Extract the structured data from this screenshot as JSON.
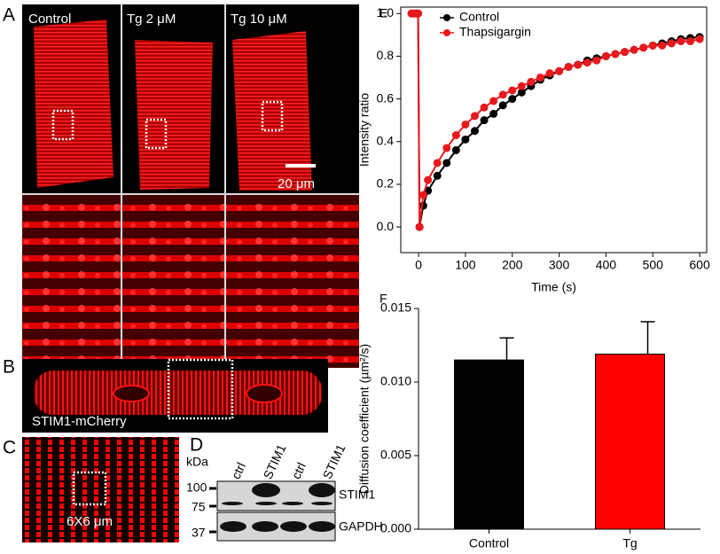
{
  "figure": {
    "panel_a": {
      "label": "A",
      "images": [
        "Control",
        "Tg 2 μM",
        "Tg 10 μM"
      ],
      "scale_bar": "20 μm"
    },
    "panel_b": {
      "label": "B",
      "caption": "STIM1-mCherry"
    },
    "panel_c": {
      "label": "C",
      "caption": "6X6 μm"
    },
    "panel_d": {
      "label": "D",
      "unit": "kDa",
      "markers": [
        "100",
        "75",
        "37"
      ],
      "lanes": [
        "ctrl",
        "STIM1",
        "ctrl",
        "STIM1"
      ],
      "bands": [
        "STIM1",
        "GAPDH"
      ]
    }
  },
  "chart_data": [
    {
      "type": "line",
      "label": "E",
      "x_label": "Time (s)",
      "y_label": "Intensity ratio",
      "x": [
        -15,
        -10,
        -5,
        -1,
        2,
        10,
        20,
        40,
        60,
        80,
        100,
        120,
        140,
        160,
        180,
        200,
        220,
        240,
        260,
        280,
        300,
        320,
        340,
        360,
        380,
        400,
        420,
        440,
        460,
        480,
        500,
        520,
        540,
        560,
        580,
        600
      ],
      "series": [
        {
          "name": "Control",
          "color": "#000000",
          "values": [
            1,
            1,
            1,
            1,
            0,
            0.1,
            0.17,
            0.24,
            0.3,
            0.36,
            0.41,
            0.45,
            0.5,
            0.53,
            0.57,
            0.6,
            0.63,
            0.66,
            0.69,
            0.71,
            0.73,
            0.75,
            0.76,
            0.78,
            0.79,
            0.8,
            0.81,
            0.82,
            0.83,
            0.84,
            0.85,
            0.86,
            0.87,
            0.88,
            0.885,
            0.89
          ]
        },
        {
          "name": "Thapsigargin",
          "color": "#e8191c",
          "values": [
            1,
            1,
            1,
            1,
            0,
            0.15,
            0.22,
            0.3,
            0.37,
            0.43,
            0.48,
            0.52,
            0.56,
            0.59,
            0.62,
            0.64,
            0.66,
            0.68,
            0.7,
            0.72,
            0.73,
            0.75,
            0.76,
            0.77,
            0.78,
            0.8,
            0.81,
            0.82,
            0.83,
            0.84,
            0.85,
            0.85,
            0.86,
            0.87,
            0.87,
            0.88
          ]
        }
      ],
      "xlim": [
        -38,
        615
      ],
      "ylim": [
        -0.12,
        1.03
      ],
      "xticks": [
        0,
        100,
        200,
        300,
        400,
        500,
        600
      ],
      "yticks": [
        {
          "value": 0,
          "label": "0.0"
        },
        {
          "value": 0.2,
          "label": "0.2"
        },
        {
          "value": 0.4,
          "label": "0.4"
        },
        {
          "value": 0.6,
          "label": "0.6"
        },
        {
          "value": 0.8,
          "label": "0.8"
        },
        {
          "value": 1,
          "label": "1.0"
        }
      ],
      "legend": "top-left"
    },
    {
      "type": "bar",
      "label": "F",
      "y_label": "Diffusion coefficient (µm²/s)",
      "categories": [
        "Control",
        "Tg"
      ],
      "values": [
        0.0115,
        0.0119
      ],
      "errors": [
        0.0015,
        0.0022
      ],
      "colors": [
        "#000000",
        "#ff0000"
      ],
      "ylim": [
        0,
        0.015
      ],
      "yticks": [
        {
          "value": 0,
          "label": "0.000"
        },
        {
          "value": 0.005,
          "label": "0.005"
        },
        {
          "value": 0.01,
          "label": "0.010"
        },
        {
          "value": 0.015,
          "label": "0.015"
        }
      ]
    }
  ]
}
